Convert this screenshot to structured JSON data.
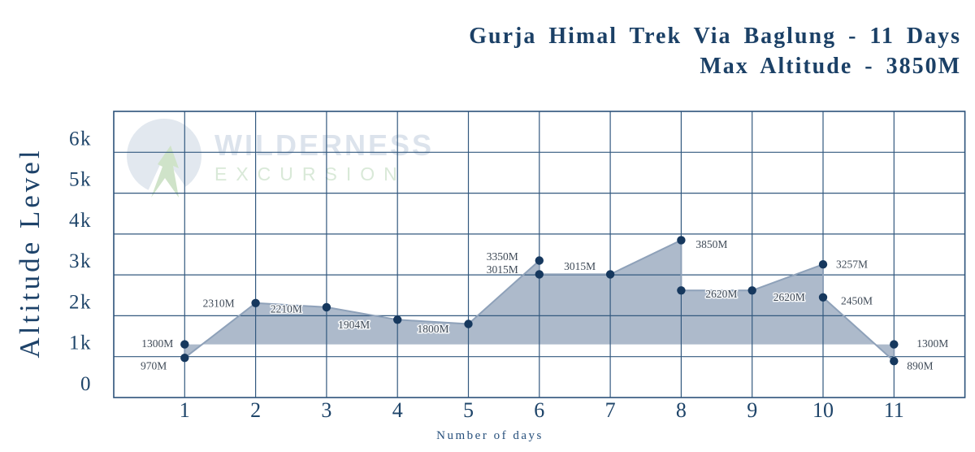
{
  "title": {
    "line1": "Gurja Himal Trek Via Baglung - 11 Days",
    "line2": "Max Altitude - 3850M"
  },
  "watermark": {
    "name": "WILDERNESS",
    "sub": "EXCURSION"
  },
  "chart_data": {
    "type": "area",
    "title": "Gurja Himal Trek Via Baglung - 11 Days",
    "subtitle": "Max Altitude - 3850M",
    "xlabel": "Number of days",
    "ylabel": "Altitude Level",
    "x_ticks": [
      "1",
      "2",
      "3",
      "4",
      "5",
      "6",
      "7",
      "8",
      "9",
      "10",
      "11"
    ],
    "y_ticks": [
      {
        "value": 0,
        "label": "0"
      },
      {
        "value": 1000,
        "label": "1k"
      },
      {
        "value": 2000,
        "label": "2k"
      },
      {
        "value": 3000,
        "label": "3k"
      },
      {
        "value": 4000,
        "label": "4k"
      },
      {
        "value": 5000,
        "label": "5k"
      },
      {
        "value": 6000,
        "label": "6k"
      }
    ],
    "ylim": [
      0,
      7000
    ],
    "xlim": [
      0,
      12
    ],
    "grid": true,
    "legend": false,
    "baseline_altitude": 1300,
    "max_altitude": 3850,
    "points": [
      {
        "day": 1,
        "altitude": 1300,
        "label": "1300M",
        "label_side": "left"
      },
      {
        "day": 1,
        "altitude": 970,
        "label": "970M",
        "label_side": "left"
      },
      {
        "day": 2,
        "altitude": 2310,
        "label": "2310M",
        "label_side": "left"
      },
      {
        "day": 3,
        "altitude": 2210,
        "label": "2210M",
        "label_side": "left"
      },
      {
        "day": 4,
        "altitude": 1904,
        "label": "1904M",
        "label_side": "left"
      },
      {
        "day": 5,
        "altitude": 1800,
        "label": "1800M",
        "label_side": "left"
      },
      {
        "day": 6,
        "altitude": 3350,
        "label": "3350M",
        "label_side": "left"
      },
      {
        "day": 6,
        "altitude": 3015,
        "label": "3015M",
        "label_side": "left"
      },
      {
        "day": 7,
        "altitude": 3015,
        "label": "3015M",
        "label_side": "left"
      },
      {
        "day": 8,
        "altitude": 3850,
        "label": "3850M",
        "label_side": "right"
      },
      {
        "day": 8,
        "altitude": 2620,
        "label": "2620M",
        "label_side": "right"
      },
      {
        "day": 9,
        "altitude": 2620,
        "label": "2620M",
        "label_side": "right"
      },
      {
        "day": 10,
        "altitude": 3257,
        "label": "3257M",
        "label_side": "right"
      },
      {
        "day": 10,
        "altitude": 2450,
        "label": "2450M",
        "label_side": "right"
      },
      {
        "day": 11,
        "altitude": 890,
        "label": "890M",
        "label_side": "right"
      },
      {
        "day": 11,
        "altitude": 1300,
        "label": "1300M",
        "label_side": "right"
      }
    ],
    "colors": {
      "grid": "#33597f",
      "border": "#2c527a",
      "area_fill": "#a9b6c8",
      "line": "#8ea1b9",
      "marker": "#16385e",
      "tick_text": "#1e4469",
      "axis_caption": "#27507c",
      "data_label": "#3f4a57",
      "title_text": "#1b4066",
      "watermark_gray": "#e2e8ef",
      "watermark_green": "#cfe3c9"
    }
  }
}
